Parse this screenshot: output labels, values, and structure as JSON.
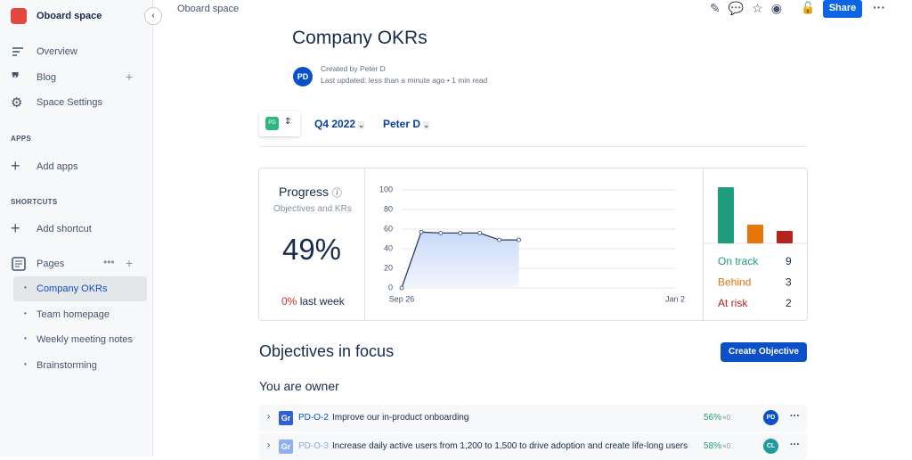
{
  "sidebar": {
    "space_name": "Oboard space",
    "nav": [
      "Overview",
      "Blog",
      "Space Settings"
    ],
    "apps_heading": "APPS",
    "add_apps": "Add apps",
    "shortcuts_heading": "SHORTCUTS",
    "add_shortcut": "Add shortcut",
    "pages_heading": "Pages",
    "pages": [
      "Company OKRs",
      "Team homepage",
      "Weekly meeting notes",
      "Brainstorming"
    ]
  },
  "header": {
    "breadcrumb": "Oboard space",
    "share": "Share"
  },
  "page": {
    "title": "Company OKRs",
    "author_avatar": "PD",
    "created_by": "Created by Peter D",
    "last_updated": "Last updated: less than a minute ago",
    "read_time": "1 min read"
  },
  "filters": {
    "workspace_badge": "PD",
    "period": "Q4 2022",
    "owner": "Peter D"
  },
  "progress": {
    "title": "Progress",
    "subtitle": "Objectives and KRs",
    "value_label": "49%",
    "change_label": "0%",
    "change_suffix": "last week"
  },
  "chart_data": [
    {
      "type": "line",
      "categories": [
        "Sep 26",
        null,
        null,
        null,
        null,
        null,
        null,
        null,
        null,
        null,
        null,
        null,
        null,
        null,
        "Jan 2"
      ],
      "series": [
        {
          "color": "#2c3e66",
          "values": [
            0,
            57,
            56,
            56,
            56,
            49,
            49,
            null,
            null,
            null,
            null,
            null,
            null,
            null,
            null
          ]
        }
      ],
      "ylim": [
        0,
        100
      ],
      "yticks": [
        0,
        20,
        40,
        60,
        80,
        100
      ],
      "grid": true
    },
    {
      "type": "bar",
      "categories": [
        "On track",
        "Behind",
        "At risk"
      ],
      "values": [
        9,
        3,
        2
      ],
      "colors": [
        "#1f9b7d",
        "#e8760a",
        "#b5231b"
      ]
    }
  ],
  "objectives": {
    "title": "Objectives in focus",
    "create_button": "Create Objective",
    "group_title": "You are owner",
    "rows": [
      {
        "type": "Gr",
        "id": "PD-O-2",
        "name": "Improve our in-product onboarding",
        "progress": "56%",
        "change": "×0",
        "owner": "PD"
      },
      {
        "type": "Gr",
        "id": "PD-O-3",
        "name": "Increase daily active users from 1,200 to 1,500 to drive adoption and create life-long users",
        "progress": "58%",
        "change": "×0",
        "owner": "CL"
      }
    ]
  }
}
